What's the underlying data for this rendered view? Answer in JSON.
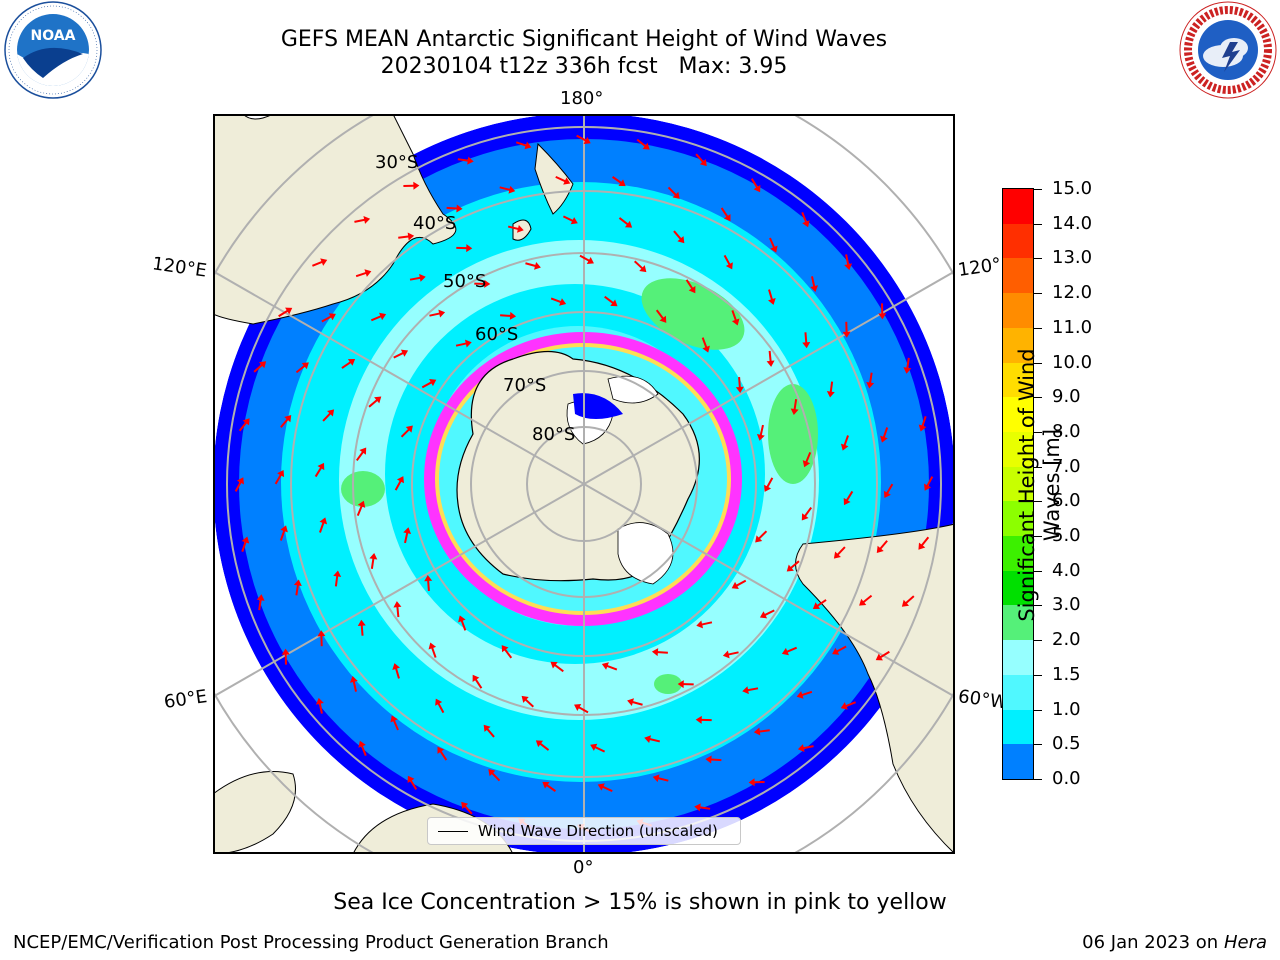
{
  "title": {
    "line1": "GEFS MEAN Antarctic Significant Height of Wind Waves",
    "line2": "20230104 t12z 336h fcst   Max: 3.95"
  },
  "map": {
    "longitude_labels": {
      "top": "180°",
      "bottom": "0°",
      "upper_left": "120°E",
      "upper_right": "120°",
      "lower_left": "60°E",
      "lower_right": "60°W"
    },
    "latitude_labels": [
      "30°S",
      "40°S",
      "50°S",
      "60°S",
      "70°S",
      "80°S"
    ],
    "colors": {
      "land": "#efedd9",
      "ocean_deep_blue": "#0000ff",
      "ocean_blue": "#0080ff",
      "ocean_cyan": "#00f0ff",
      "ocean_light_cyan": "#96ffff",
      "ocean_green": "#55f079",
      "sea_ice_pink": "#ff33ff",
      "sea_ice_yellow": "#ffdd55",
      "arrow": "#ff0000",
      "grid": "#b0b0b0"
    }
  },
  "colorbar": {
    "title_line1": "Significant Height of Wind",
    "title_line2": "Waves [m]",
    "tick_labels": [
      "15.0",
      "14.0",
      "13.0",
      "12.0",
      "11.0",
      "10.0",
      "9.0",
      "8.0",
      "7.0",
      "6.0",
      "5.0",
      "4.0",
      "3.0",
      "2.0",
      "1.5",
      "1.0",
      "0.5",
      "0.0"
    ],
    "segment_colors_top_to_bottom": [
      "#ff0000",
      "#ff2f00",
      "#ff5e00",
      "#ff8c00",
      "#ffb300",
      "#ffdd00",
      "#ffff00",
      "#e8ff00",
      "#c8ff00",
      "#8cff00",
      "#3cf000",
      "#00e000",
      "#55f079",
      "#96ffff",
      "#50f8ff",
      "#00f0ff",
      "#0080ff",
      "#0000ff"
    ]
  },
  "legend": {
    "label": "Wind Wave Direction (unscaled)"
  },
  "subtitle": "Sea Ice Concentration > 15% is shown in pink to yellow",
  "footer": {
    "left": "NCEP/EMC/Verification Post Processing Product Generation Branch",
    "right_date": "06 Jan 2023 on ",
    "right_host": "Hera"
  },
  "logos": {
    "noaa": {
      "text": "NOAA",
      "ring_text": "NATIONAL OCEANIC AND ATMOSPHERIC ADMINISTRATION"
    },
    "nws": {
      "ring_text": "NATIONAL WEATHER SERVICE"
    }
  }
}
